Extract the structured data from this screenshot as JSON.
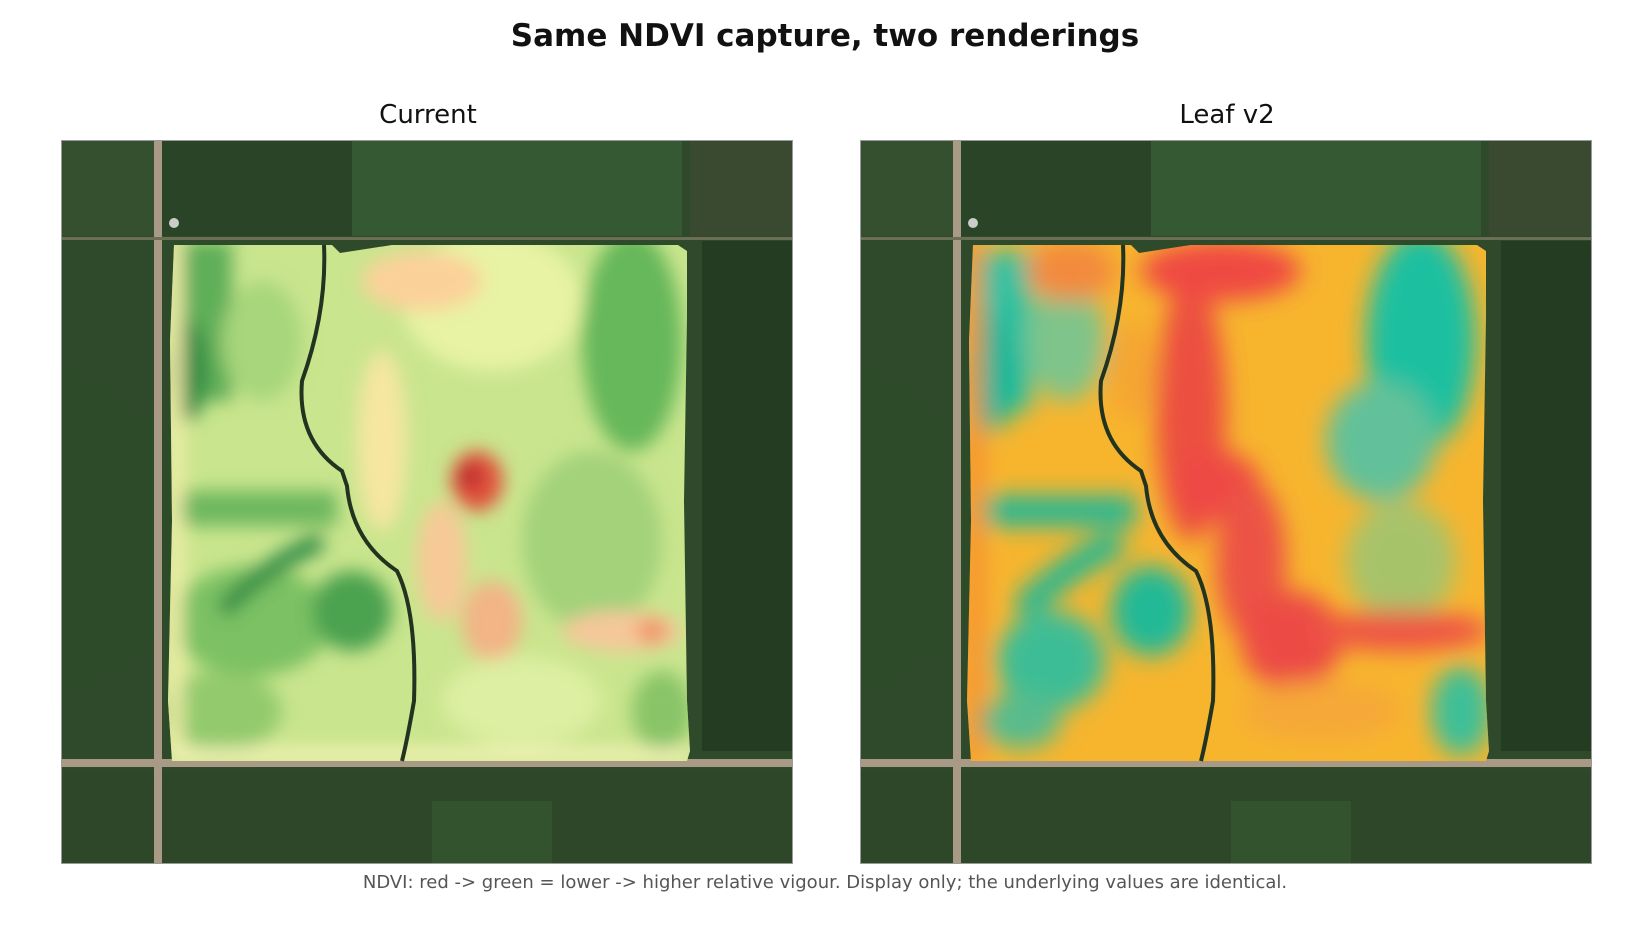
{
  "figure": {
    "title": "Same NDVI capture, two renderings",
    "caption": "NDVI: red -> green = lower -> higher relative vigour.  Display only; the underlying values are identical."
  },
  "panels": [
    {
      "title": "Current",
      "colormap": "red-yellow-green (blocky)",
      "colors": {
        "low": "#a50026",
        "mid": "#ffffbf",
        "high": "#006837"
      }
    },
    {
      "title": "Leaf v2",
      "colormap": "red-orange-yellow-teal (smooth)",
      "colors": {
        "low": "#ea4b4b",
        "mid": "#ffc12b",
        "high": "#19c2a0"
      }
    }
  ],
  "colors": {
    "field_surround": "#2f4a2b",
    "road": "#a89a84"
  }
}
